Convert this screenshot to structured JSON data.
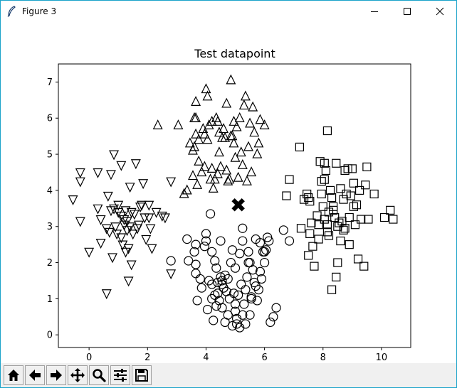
{
  "window": {
    "title": "Figure 3",
    "accent_color": "#1aa3c9"
  },
  "toolbar": {
    "buttons": [
      {
        "name": "home",
        "icon": "home-icon"
      },
      {
        "name": "back",
        "icon": "arrow-left-icon"
      },
      {
        "name": "forward",
        "icon": "arrow-right-icon"
      },
      {
        "name": "pan",
        "icon": "move-icon"
      },
      {
        "name": "zoom",
        "icon": "magnifier-icon"
      },
      {
        "name": "configure-subplots",
        "icon": "sliders-icon"
      },
      {
        "name": "save",
        "icon": "floppy-disk-icon"
      }
    ]
  },
  "chart_data": {
    "type": "scatter",
    "title": "Test datapoint",
    "xlabel": "",
    "ylabel": "",
    "xlim": [
      -1.05,
      11.0
    ],
    "ylim": [
      -0.35,
      7.5
    ],
    "xticks": [
      0,
      2,
      4,
      6,
      8,
      10
    ],
    "yticks": [
      0,
      1,
      2,
      3,
      4,
      5,
      6,
      7
    ],
    "grid": false,
    "series": [
      {
        "marker": "triangle-down",
        "points": [
          [
            -0.55,
            3.75
          ],
          [
            -0.3,
            3.15
          ],
          [
            -0.3,
            4.5
          ],
          [
            -0.3,
            4.25
          ],
          [
            0.0,
            2.3
          ],
          [
            0.3,
            3.5
          ],
          [
            0.3,
            4.5
          ],
          [
            0.4,
            3.2
          ],
          [
            0.4,
            2.55
          ],
          [
            0.6,
            1.15
          ],
          [
            0.65,
            3.85
          ],
          [
            0.7,
            2.85
          ],
          [
            0.8,
            2.15
          ],
          [
            0.85,
            3.5
          ],
          [
            0.85,
            5.0
          ],
          [
            0.75,
            4.45
          ],
          [
            0.9,
            3.0
          ],
          [
            0.95,
            2.8
          ],
          [
            1.0,
            3.4
          ],
          [
            1.0,
            3.6
          ],
          [
            1.1,
            4.7
          ],
          [
            1.1,
            3.3
          ],
          [
            1.1,
            2.7
          ],
          [
            1.15,
            2.5
          ],
          [
            1.2,
            3.05
          ],
          [
            1.25,
            3.45
          ],
          [
            1.25,
            2.3
          ],
          [
            1.3,
            2.9
          ],
          [
            1.3,
            3.15
          ],
          [
            1.35,
            2.4
          ],
          [
            1.4,
            3.0
          ],
          [
            1.4,
            4.1
          ],
          [
            1.45,
            3.4
          ],
          [
            1.5,
            2.8
          ],
          [
            1.55,
            3.35
          ],
          [
            1.6,
            4.75
          ],
          [
            1.65,
            2.95
          ],
          [
            1.7,
            3.05
          ],
          [
            1.75,
            3.55
          ],
          [
            1.8,
            3.6
          ],
          [
            1.85,
            4.2
          ],
          [
            1.9,
            3.25
          ],
          [
            1.95,
            2.65
          ],
          [
            2.05,
            3.6
          ],
          [
            2.05,
            3.25
          ],
          [
            2.1,
            2.95
          ],
          [
            2.15,
            2.4
          ],
          [
            2.3,
            3.4
          ],
          [
            2.5,
            3.3
          ],
          [
            2.6,
            3.25
          ],
          [
            2.8,
            4.25
          ],
          [
            2.8,
            1.7
          ],
          [
            0.6,
            2.95
          ],
          [
            1.35,
            1.5
          ],
          [
            1.2,
            3.2
          ],
          [
            1.45,
            1.95
          ],
          [
            0.75,
            3.45
          ]
        ]
      },
      {
        "marker": "triangle-up",
        "points": [
          [
            2.35,
            5.8
          ],
          [
            3.05,
            5.8
          ],
          [
            3.25,
            3.9
          ],
          [
            3.35,
            4.0
          ],
          [
            3.45,
            5.3
          ],
          [
            3.55,
            5.1
          ],
          [
            3.55,
            4.4
          ],
          [
            3.6,
            5.2
          ],
          [
            3.65,
            5.55
          ],
          [
            3.6,
            6.0
          ],
          [
            3.65,
            6.45
          ],
          [
            3.65,
            6.0
          ],
          [
            3.7,
            4.15
          ],
          [
            3.75,
            5.4
          ],
          [
            3.75,
            4.8
          ],
          [
            3.85,
            4.5
          ],
          [
            3.9,
            5.7
          ],
          [
            3.95,
            5.55
          ],
          [
            3.95,
            4.65
          ],
          [
            4.0,
            6.8
          ],
          [
            4.05,
            6.6
          ],
          [
            4.05,
            5.4
          ],
          [
            4.1,
            5.8
          ],
          [
            4.15,
            4.3
          ],
          [
            4.2,
            4.6
          ],
          [
            4.2,
            5.9
          ],
          [
            4.25,
            4.05
          ],
          [
            4.3,
            4.3
          ],
          [
            4.35,
            6.0
          ],
          [
            4.4,
            5.9
          ],
          [
            4.45,
            5.6
          ],
          [
            4.45,
            5.05
          ],
          [
            4.5,
            4.65
          ],
          [
            4.55,
            5.45
          ],
          [
            4.6,
            5.7
          ],
          [
            4.65,
            5.45
          ],
          [
            4.7,
            4.55
          ],
          [
            4.7,
            6.4
          ],
          [
            4.75,
            4.25
          ],
          [
            4.8,
            4.3
          ],
          [
            4.85,
            7.05
          ],
          [
            4.85,
            5.5
          ],
          [
            4.9,
            5.5
          ],
          [
            4.95,
            5.9
          ],
          [
            5.0,
            4.9
          ],
          [
            5.05,
            5.75
          ],
          [
            5.1,
            4.35
          ],
          [
            5.15,
            6.0
          ],
          [
            5.2,
            5.05
          ],
          [
            5.25,
            4.7
          ],
          [
            5.3,
            6.35
          ],
          [
            5.35,
            6.6
          ],
          [
            5.4,
            4.25
          ],
          [
            5.45,
            5.2
          ],
          [
            5.5,
            5.85
          ],
          [
            5.55,
            4.5
          ],
          [
            5.6,
            6.3
          ],
          [
            5.65,
            5.6
          ],
          [
            5.75,
            5.0
          ],
          [
            5.8,
            5.3
          ],
          [
            5.85,
            5.95
          ],
          [
            6.0,
            5.8
          ],
          [
            4.4,
            4.45
          ],
          [
            4.95,
            5.3
          ]
        ]
      },
      {
        "marker": "circle",
        "points": [
          [
            3.4,
            2.05
          ],
          [
            3.6,
            2.3
          ],
          [
            3.65,
            2.5
          ],
          [
            3.65,
            1.95
          ],
          [
            3.65,
            1.7
          ],
          [
            3.7,
            0.95
          ],
          [
            3.85,
            1.3
          ],
          [
            3.95,
            2.45
          ],
          [
            4.0,
            2.8
          ],
          [
            4.0,
            2.6
          ],
          [
            4.05,
            0.7
          ],
          [
            4.1,
            1.5
          ],
          [
            4.15,
            3.35
          ],
          [
            4.2,
            2.3
          ],
          [
            4.2,
            1.0
          ],
          [
            4.25,
            0.4
          ],
          [
            4.3,
            2.05
          ],
          [
            4.3,
            1.1
          ],
          [
            4.35,
            1.85
          ],
          [
            4.4,
            1.15
          ],
          [
            4.4,
            1.45
          ],
          [
            4.45,
            0.95
          ],
          [
            4.5,
            2.6
          ],
          [
            4.5,
            1.6
          ],
          [
            4.55,
            0.75
          ],
          [
            4.55,
            1.4
          ],
          [
            4.6,
            1.3
          ],
          [
            4.65,
            1.65
          ],
          [
            4.65,
            0.35
          ],
          [
            4.7,
            1.2
          ],
          [
            4.75,
            0.55
          ],
          [
            4.8,
            1.0
          ],
          [
            4.85,
            2.0
          ],
          [
            4.9,
            2.35
          ],
          [
            4.95,
            1.15
          ],
          [
            5.0,
            0.65
          ],
          [
            5.0,
            1.85
          ],
          [
            5.05,
            0.3
          ],
          [
            5.1,
            1.1
          ],
          [
            5.15,
            0.2
          ],
          [
            5.15,
            2.25
          ],
          [
            5.2,
            1.4
          ],
          [
            5.25,
            0.55
          ],
          [
            5.3,
            0.85
          ],
          [
            5.35,
            0.3
          ],
          [
            5.4,
            1.6
          ],
          [
            5.45,
            2.0
          ],
          [
            5.5,
            0.55
          ],
          [
            5.55,
            1.05
          ],
          [
            5.6,
            1.8
          ],
          [
            5.65,
            1.45
          ],
          [
            5.7,
            1.35
          ],
          [
            5.75,
            0.95
          ],
          [
            5.8,
            1.25
          ],
          [
            5.85,
            2.55
          ],
          [
            5.9,
            1.55
          ],
          [
            5.95,
            2.3
          ],
          [
            6.0,
            2.0
          ],
          [
            6.05,
            2.35
          ],
          [
            6.1,
            2.7
          ],
          [
            6.15,
            2.6
          ],
          [
            5.45,
            2.3
          ],
          [
            6.3,
            0.5
          ],
          [
            6.4,
            0.75
          ],
          [
            6.65,
            2.9
          ],
          [
            6.85,
            2.6
          ],
          [
            4.55,
            1.5
          ],
          [
            5.25,
            2.6
          ],
          [
            3.35,
            2.65
          ],
          [
            5.5,
            2.0
          ],
          [
            4.75,
            1.55
          ],
          [
            4.35,
            0.8
          ],
          [
            5.0,
            0.85
          ],
          [
            6.2,
            0.35
          ],
          [
            5.85,
            1.75
          ],
          [
            3.8,
            1.55
          ],
          [
            4.2,
            1.4
          ],
          [
            2.8,
            2.05
          ],
          [
            5.7,
            2.65
          ],
          [
            5.25,
            2.95
          ],
          [
            5.05,
            0.45
          ],
          [
            4.9,
            0.25
          ],
          [
            6.0,
            2.3
          ],
          [
            5.55,
            1.0
          ],
          [
            5.35,
            1.25
          ],
          [
            4.6,
            1.3
          ]
        ]
      },
      {
        "marker": "square",
        "points": [
          [
            6.75,
            3.85
          ],
          [
            6.85,
            4.3
          ],
          [
            7.2,
            5.2
          ],
          [
            7.25,
            2.95
          ],
          [
            7.45,
            3.9
          ],
          [
            7.5,
            3.8
          ],
          [
            7.5,
            2.2
          ],
          [
            7.55,
            2.8
          ],
          [
            7.55,
            3.7
          ],
          [
            7.6,
            3.1
          ],
          [
            7.65,
            2.45
          ],
          [
            7.7,
            1.9
          ],
          [
            7.8,
            3.3
          ],
          [
            7.85,
            2.65
          ],
          [
            7.9,
            4.8
          ],
          [
            7.95,
            4.25
          ],
          [
            7.95,
            3.9
          ],
          [
            8.0,
            3.55
          ],
          [
            8.05,
            4.75
          ],
          [
            8.05,
            3.2
          ],
          [
            8.1,
            4.55
          ],
          [
            8.15,
            2.85
          ],
          [
            8.15,
            3.05
          ],
          [
            8.2,
            3.4
          ],
          [
            8.25,
            4.0
          ],
          [
            8.3,
            1.25
          ],
          [
            8.3,
            3.8
          ],
          [
            8.35,
            3.55
          ],
          [
            8.4,
            3.25
          ],
          [
            8.45,
            4.75
          ],
          [
            8.5,
            3.0
          ],
          [
            8.55,
            3.1
          ],
          [
            8.6,
            4.05
          ],
          [
            8.65,
            3.15
          ],
          [
            8.7,
            3.75
          ],
          [
            8.75,
            2.95
          ],
          [
            8.8,
            3.9
          ],
          [
            8.85,
            4.6
          ],
          [
            8.9,
            3.25
          ],
          [
            8.95,
            3.85
          ],
          [
            9.0,
            4.6
          ],
          [
            9.05,
            3.55
          ],
          [
            9.1,
            3.05
          ],
          [
            9.15,
            3.6
          ],
          [
            9.2,
            2.1
          ],
          [
            9.25,
            4.0
          ],
          [
            9.3,
            3.2
          ],
          [
            9.4,
            1.9
          ],
          [
            9.45,
            4.15
          ],
          [
            9.5,
            4.65
          ],
          [
            9.55,
            3.2
          ],
          [
            9.75,
            3.9
          ],
          [
            10.1,
            3.25
          ],
          [
            10.3,
            3.45
          ],
          [
            10.4,
            3.2
          ],
          [
            8.45,
            1.6
          ],
          [
            8.2,
            2.75
          ],
          [
            8.05,
            4.3
          ],
          [
            8.6,
            2.6
          ],
          [
            8.9,
            2.5
          ],
          [
            8.5,
            2.0
          ],
          [
            9.05,
            4.2
          ],
          [
            8.75,
            4.55
          ],
          [
            8.35,
            3.45
          ],
          [
            7.85,
            3.05
          ],
          [
            8.7,
            2.9
          ],
          [
            7.35,
            3.75
          ],
          [
            8.15,
            5.65
          ]
        ]
      },
      {
        "name": "",
        "marker": "X",
        "points": [
          [
            5.1,
            3.6
          ]
        ]
      }
    ]
  }
}
